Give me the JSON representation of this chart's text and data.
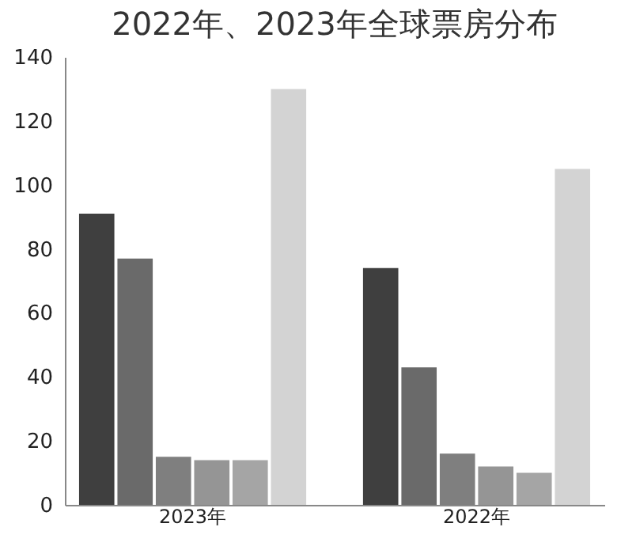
{
  "chart_data": {
    "type": "bar",
    "title": "2022年、2023年全球票房分布",
    "categories": [
      "2023年",
      "2022年"
    ],
    "series": [
      {
        "color": "#3f3f3f",
        "values": [
          91,
          74
        ]
      },
      {
        "color": "#6a6a6a",
        "values": [
          77,
          43
        ]
      },
      {
        "color": "#7f7f7f",
        "values": [
          15,
          16
        ]
      },
      {
        "color": "#959595",
        "values": [
          14,
          12
        ]
      },
      {
        "color": "#a5a5a5",
        "values": [
          14,
          10
        ]
      },
      {
        "color": "#d3d3d3",
        "values": [
          130,
          105
        ]
      }
    ],
    "ylim": [
      0,
      140
    ],
    "yticks": [
      0,
      20,
      40,
      60,
      80,
      100,
      120,
      140
    ],
    "grid": false,
    "legend": false
  }
}
